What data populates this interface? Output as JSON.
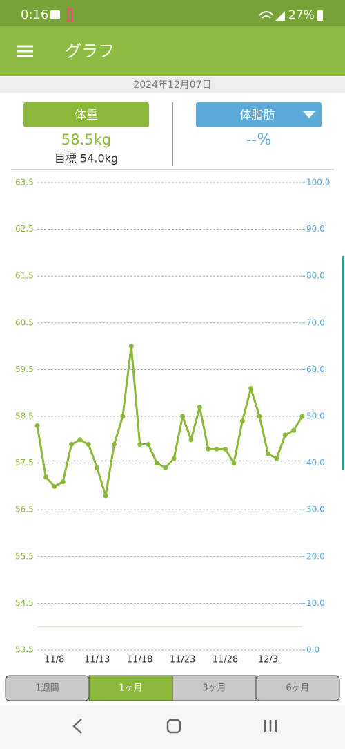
{
  "status_bar": {
    "time": "0:16",
    "battery": "27%"
  },
  "app_bar": {
    "title": "グラフ"
  },
  "date": "2024年12月07日",
  "weight": {
    "button": "体重",
    "value": "58.5kg",
    "goal": "目標 54.0kg"
  },
  "body_fat": {
    "button": "体脂肪",
    "value": "--%"
  },
  "chart_data": {
    "type": "line",
    "categories": [
      null,
      null,
      "11/8",
      null,
      null,
      null,
      null,
      "11/13",
      null,
      null,
      null,
      null,
      "11/18",
      null,
      null,
      null,
      null,
      "11/23",
      null,
      null,
      null,
      null,
      "11/28",
      null,
      null,
      null,
      null,
      "12/3",
      null,
      null,
      null,
      null
    ],
    "values": [
      58.3,
      57.2,
      57.0,
      57.1,
      57.9,
      58.0,
      57.9,
      57.4,
      56.8,
      57.9,
      58.5,
      60.0,
      57.9,
      57.9,
      57.5,
      57.4,
      57.6,
      58.5,
      58.0,
      58.7,
      57.8,
      57.8,
      57.8,
      57.5,
      58.4,
      59.1,
      58.5,
      57.7,
      57.6,
      58.1,
      58.2,
      58.5
    ],
    "color": "#8cb83a",
    "ylim": [
      53.5,
      63.5
    ],
    "yticks": [
      53.5,
      54.5,
      55.5,
      56.5,
      57.5,
      58.5,
      59.5,
      60.5,
      61.5,
      62.5,
      63.5
    ],
    "y2lim": [
      0,
      100
    ],
    "y2ticks": [
      {
        "value": 0,
        "label": "0.0"
      },
      {
        "value": 10,
        "label": "10.0"
      },
      {
        "value": 20,
        "label": "20.0"
      },
      {
        "value": 30,
        "label": "30.0"
      },
      {
        "value": 40,
        "label": "40.0"
      },
      {
        "value": 50,
        "label": "50.0"
      },
      {
        "value": 60,
        "label": "60.0"
      },
      {
        "value": 70,
        "label": "70.0"
      },
      {
        "value": 80,
        "label": "80.0"
      },
      {
        "value": 90,
        "label": "90.0"
      },
      {
        "value": 100,
        "label": "100.0"
      }
    ],
    "y2_color": "#5ba9d9",
    "goal_line": 54.0,
    "grid": true
  },
  "tabs": [
    "1週間",
    "1ヶ月",
    "3ヶ月",
    "6ヶ月"
  ],
  "selected_tab": 1
}
